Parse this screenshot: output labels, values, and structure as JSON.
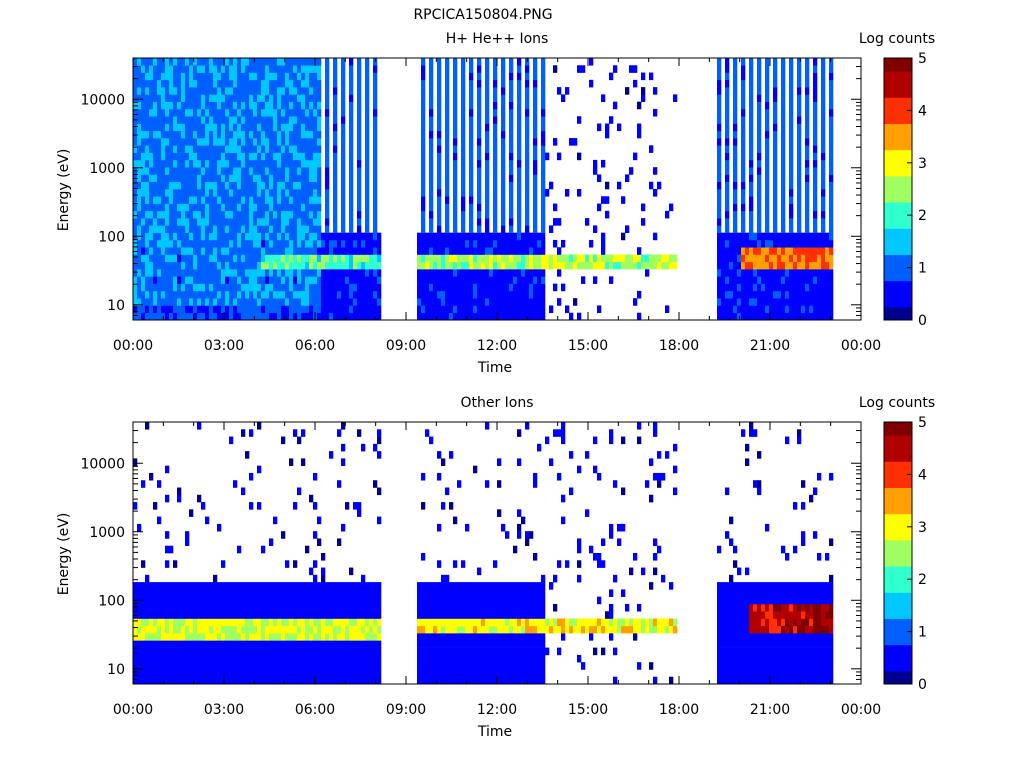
{
  "page_title": "RPCICA150804.PNG",
  "colors": {
    "colormap": [
      "#00008f",
      "#0000ff",
      "#0060ff",
      "#00c8ff",
      "#30ffcf",
      "#a0ff60",
      "#ffff00",
      "#ffa000",
      "#ff3000",
      "#b00000",
      "#800000"
    ],
    "background": "#ffffff",
    "axis": "#000000"
  },
  "chart_data": [
    {
      "type": "heatmap",
      "title": "H+ He++ Ions",
      "xlabel": "Time",
      "ylabel": "Energy (eV)",
      "y_scale": "log",
      "ylim": [
        6,
        40000
      ],
      "xlim": [
        "00:00",
        "24:00"
      ],
      "x_tick_labels": [
        "00:00",
        "03:00",
        "06:00",
        "09:00",
        "12:00",
        "15:00",
        "18:00",
        "21:00",
        "00:00"
      ],
      "y_tick_labels": [
        "10",
        "100",
        "1000",
        "10000"
      ],
      "colorbar": {
        "label": "Log counts",
        "range": [
          0,
          5
        ],
        "tick_labels": [
          "0",
          "1",
          "2",
          "3",
          "4",
          "5"
        ]
      },
      "data_gaps_hours": [
        [
          8.15,
          9.3
        ],
        [
          17.95,
          18.02
        ],
        [
          18.1,
          19.3
        ],
        [
          23.1,
          24.0
        ]
      ],
      "sparse_intervals_hours": [
        [
          13.6,
          17.9
        ]
      ],
      "bands": [
        {
          "t_start_hours": 0.0,
          "t_end_hours": 6.2,
          "energy_ev": [
            10,
            40000
          ],
          "log_counts": 1.1,
          "note": "dense background"
        },
        {
          "t_start_hours": 4.2,
          "t_end_hours": 8.15,
          "energy_ev": [
            30,
            60
          ],
          "log_counts": 2.1
        },
        {
          "t_start_hours": 9.3,
          "t_end_hours": 17.9,
          "energy_ev": [
            30,
            60
          ],
          "log_counts": 2.6
        },
        {
          "t_start_hours": 20.0,
          "t_end_hours": 23.1,
          "energy_ev": [
            35,
            70
          ],
          "log_counts": 3.8
        }
      ]
    },
    {
      "type": "heatmap",
      "title": "Other Ions",
      "xlabel": "Time",
      "ylabel": "Energy (eV)",
      "y_scale": "log",
      "ylim": [
        6,
        40000
      ],
      "xlim": [
        "00:00",
        "24:00"
      ],
      "x_tick_labels": [
        "00:00",
        "03:00",
        "06:00",
        "09:00",
        "12:00",
        "15:00",
        "18:00",
        "21:00",
        "00:00"
      ],
      "y_tick_labels": [
        "10",
        "100",
        "1000",
        "10000"
      ],
      "colorbar": {
        "label": "Log counts",
        "range": [
          0,
          5
        ],
        "tick_labels": [
          "0",
          "1",
          "2",
          "3",
          "4",
          "5"
        ]
      },
      "data_gaps_hours": [
        [
          8.15,
          9.3
        ],
        [
          17.95,
          18.02
        ],
        [
          18.1,
          19.3
        ],
        [
          23.1,
          24.0
        ]
      ],
      "sparse_intervals_hours": [
        [
          13.6,
          17.9
        ]
      ],
      "bands": [
        {
          "t_start_hours": 0.0,
          "t_end_hours": 8.15,
          "energy_ev": [
            25,
            60
          ],
          "log_counts": 2.8
        },
        {
          "t_start_hours": 9.3,
          "t_end_hours": 17.9,
          "energy_ev": [
            30,
            60
          ],
          "log_counts": 3.0
        },
        {
          "t_start_hours": 20.3,
          "t_end_hours": 23.1,
          "energy_ev": [
            35,
            80
          ],
          "log_counts": 4.6
        }
      ]
    }
  ]
}
